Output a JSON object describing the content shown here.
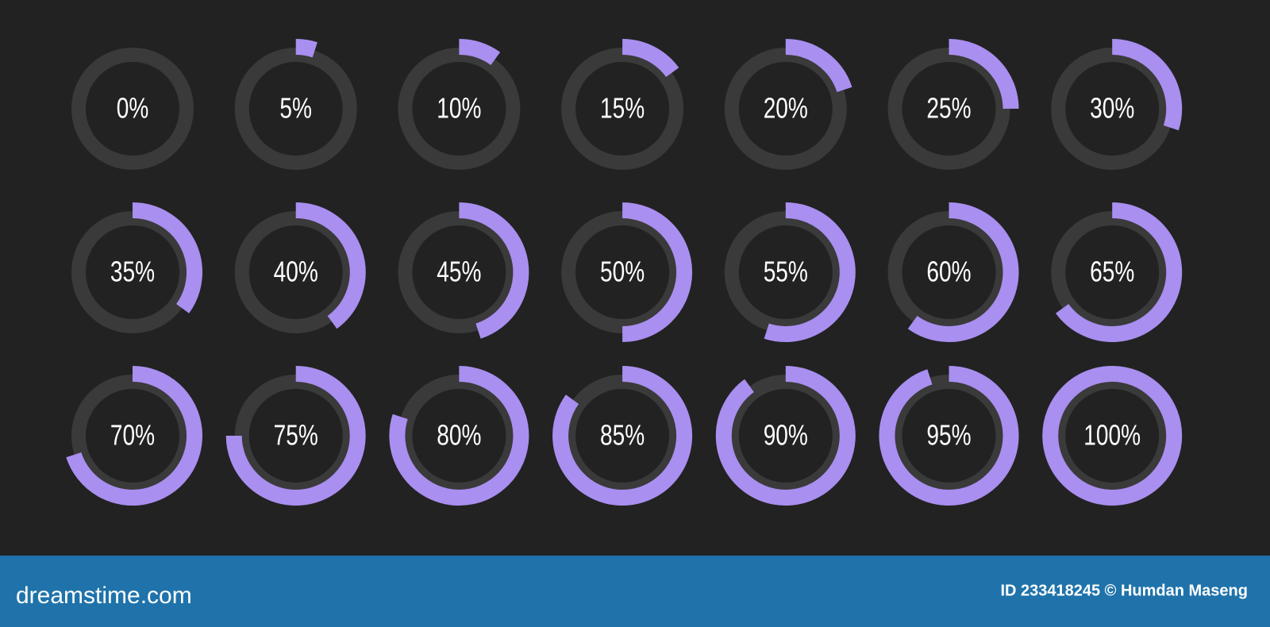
{
  "chart_data": {
    "type": "gauge",
    "values": [
      0,
      5,
      10,
      15,
      20,
      25,
      30,
      35,
      40,
      45,
      50,
      55,
      60,
      65,
      70,
      75,
      80,
      85,
      90,
      95,
      100
    ],
    "value_labels": [
      "0%",
      "5%",
      "10%",
      "15%",
      "20%",
      "25%",
      "30%",
      "35%",
      "40%",
      "45%",
      "50%",
      "55%",
      "60%",
      "65%",
      "70%",
      "75%",
      "80%",
      "85%",
      "90%",
      "95%",
      "100%"
    ],
    "ylim": [
      0,
      100
    ],
    "color": "#a98ff0",
    "track_color": "#3a3a3a"
  },
  "footer": {
    "brand": "dreamstime.com",
    "credit": "ID 233418245 © Humdan Maseng"
  }
}
